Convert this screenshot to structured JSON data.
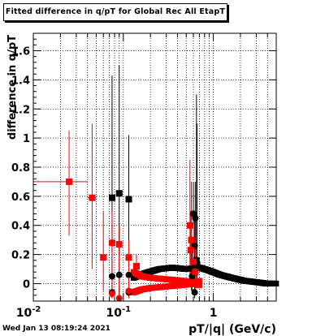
{
  "title": "Fitted difference in q/pT for Global Rec All EtapT",
  "timestamp": "Wed Jan 13 08:19:24 2021",
  "chart_data": {
    "type": "scatter",
    "title": "Fitted difference in q/pT for Global Rec All EtapT",
    "xlabel": "pT/|q| (GeV/c)",
    "ylabel": "difference in q/pT",
    "x_scale": "log",
    "xlim": [
      0.01,
      5
    ],
    "ylim": [
      -0.12,
      1.72
    ],
    "x_ticks": [
      {
        "value": 0.01,
        "label": "10^-2"
      },
      {
        "value": 0.1,
        "label": "10^-1"
      },
      {
        "value": 1,
        "label": "1"
      }
    ],
    "y_ticks": [
      0,
      0.2,
      0.4,
      0.6,
      0.8,
      1,
      1.2,
      1.4,
      1.6
    ],
    "y_tick_labels": [
      "0",
      "0.2",
      "0.4",
      "0.6",
      "0.8",
      "1",
      "1.2",
      "1.4",
      "1.6"
    ],
    "grid": true,
    "series": [
      {
        "color": "#000000",
        "marker": "square",
        "points": [
          {
            "x": 0.075,
            "y": 0.59,
            "ylo": 0.23,
            "yhi": 1.43
          },
          {
            "x": 0.09,
            "y": 0.62,
            "ylo": 0.2,
            "yhi": 1.5
          },
          {
            "x": 0.115,
            "y": 0.58,
            "ylo": -0.1,
            "yhi": 1.02
          },
          {
            "x": 0.65,
            "y": 0.16,
            "ylo": 0.0,
            "yhi": 1.3
          },
          {
            "x": 0.66,
            "y": 0.13,
            "ylo": 0.02,
            "yhi": 1.1
          }
        ]
      },
      {
        "color": "#000000",
        "marker": "circle",
        "points": [
          {
            "x": 0.075,
            "y": 0.05,
            "ylo": -0.1,
            "yhi": 0.4
          },
          {
            "x": 0.09,
            "y": 0.06,
            "ylo": -0.1,
            "yhi": 0.4
          },
          {
            "x": 0.075,
            "y": -0.06,
            "ylo": -0.1,
            "yhi": 0.2
          },
          {
            "x": 0.115,
            "y": 0.06,
            "ylo": -0.1,
            "yhi": 0.3
          },
          {
            "x": 0.115,
            "y": -0.06,
            "ylo": -0.1,
            "yhi": 0.2
          },
          {
            "x": 0.6,
            "y": 0.48,
            "ylo": 0.25,
            "yhi": 0.7
          },
          {
            "x": 0.63,
            "y": 0.45,
            "ylo": 0.2,
            "yhi": 0.7
          },
          {
            "x": 0.62,
            "y": 0.26,
            "ylo": 0.1,
            "yhi": 0.5
          },
          {
            "x": 0.58,
            "y": 0.05,
            "ylo": -0.05,
            "yhi": 0.3
          },
          {
            "x": 0.62,
            "y": -0.06,
            "ylo": -0.1,
            "yhi": 0.2
          }
        ],
        "band": [
          {
            "x": 0.13,
            "y": 0.04
          },
          {
            "x": 0.17,
            "y": 0.07
          },
          {
            "x": 0.25,
            "y": 0.1
          },
          {
            "x": 0.35,
            "y": 0.11
          },
          {
            "x": 0.5,
            "y": 0.1
          },
          {
            "x": 0.7,
            "y": 0.11
          },
          {
            "x": 0.9,
            "y": 0.09
          },
          {
            "x": 1.2,
            "y": 0.06
          },
          {
            "x": 1.6,
            "y": 0.04
          },
          {
            "x": 2.2,
            "y": 0.02
          },
          {
            "x": 3.0,
            "y": 0.01
          },
          {
            "x": 4.0,
            "y": 0.0
          },
          {
            "x": 5.0,
            "y": 0.0
          }
        ]
      },
      {
        "color": "#ff0000",
        "marker": "square",
        "points": [
          {
            "x": 0.025,
            "y": 0.7,
            "ylo": 0.33,
            "yhi": 1.05,
            "xlo": 0.01,
            "xhi": 0.04
          },
          {
            "x": 0.045,
            "y": 0.59,
            "ylo": 0.1,
            "yhi": 1.1,
            "xlo": 0.04,
            "xhi": 0.05
          },
          {
            "x": 0.06,
            "y": 0.18,
            "ylo": -0.05,
            "yhi": 0.5
          },
          {
            "x": 0.075,
            "y": 0.28,
            "ylo": 0.1,
            "yhi": 0.5
          },
          {
            "x": 0.09,
            "y": 0.27,
            "ylo": 0.1,
            "yhi": 0.4
          },
          {
            "x": 0.115,
            "y": 0.18,
            "ylo": 0.05,
            "yhi": 0.3
          },
          {
            "x": 0.14,
            "y": 0.12,
            "ylo": 0.05,
            "yhi": 0.2
          },
          {
            "x": 0.55,
            "y": 0.4,
            "ylo": 0.0,
            "yhi": 0.85
          },
          {
            "x": 0.57,
            "y": 0.3,
            "ylo": -0.05,
            "yhi": 0.7
          },
          {
            "x": 0.56,
            "y": 0.23,
            "ylo": 0.0,
            "yhi": 0.5
          },
          {
            "x": 0.6,
            "y": 0.15,
            "ylo": 0.0,
            "yhi": 0.4
          },
          {
            "x": 0.63,
            "y": 0.08,
            "ylo": -0.05,
            "yhi": 0.3
          }
        ]
      },
      {
        "color": "#ff0000",
        "marker": "circle",
        "points": [
          {
            "x": 0.075,
            "y": -0.07,
            "ylo": -0.1,
            "yhi": 0.1
          },
          {
            "x": 0.09,
            "y": -0.1,
            "ylo": -0.12,
            "yhi": 0.05
          },
          {
            "x": 0.115,
            "y": -0.05,
            "ylo": -0.1,
            "yhi": 0.05
          }
        ],
        "band_upper": [
          {
            "x": 0.13,
            "y": 0.08
          },
          {
            "x": 0.16,
            "y": 0.05
          },
          {
            "x": 0.2,
            "y": 0.04
          },
          {
            "x": 0.3,
            "y": 0.03
          },
          {
            "x": 0.45,
            "y": 0.02
          },
          {
            "x": 0.6,
            "y": 0.01
          },
          {
            "x": 0.7,
            "y": 0.02
          }
        ],
        "band_lower": [
          {
            "x": 0.13,
            "y": -0.06
          },
          {
            "x": 0.16,
            "y": -0.04
          },
          {
            "x": 0.2,
            "y": -0.03
          },
          {
            "x": 0.3,
            "y": -0.02
          },
          {
            "x": 0.45,
            "y": -0.01
          },
          {
            "x": 0.6,
            "y": 0.0
          },
          {
            "x": 0.7,
            "y": -0.01
          }
        ]
      }
    ]
  }
}
